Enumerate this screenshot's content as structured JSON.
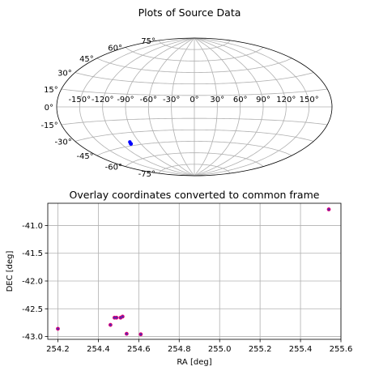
{
  "chart_data": [
    {
      "type": "scatter",
      "projection": "aitoff",
      "title": "Plots of Source Data",
      "xtick_labels": [
        "-150°",
        "-120°",
        "-90°",
        "-60°",
        "-30°",
        "0°",
        "30°",
        "60°",
        "90°",
        "120°",
        "150°"
      ],
      "ytick_labels": [
        "-75°",
        "-60°",
        "-45°",
        "-30°",
        "-15°",
        "0°",
        "15°",
        "30°",
        "45°",
        "60°",
        "75°"
      ],
      "grid": true,
      "point_color": "#0000ff",
      "series": [
        {
          "lon_deg": [
            -105.8,
            -105.52,
            -105.47,
            -105.46,
            -105.49,
            -105.41,
            -104.46
          ],
          "lat_deg": [
            -42.86,
            -42.66,
            -42.66,
            -42.65,
            -42.78,
            -42.95,
            -40.71
          ]
        }
      ]
    },
    {
      "type": "scatter",
      "title": "Overlay coordinates converted to common frame",
      "xlabel": "RA [deg]",
      "ylabel": "DEC [deg]",
      "xlim": [
        254.15,
        255.6
      ],
      "ylim": [
        -43.05,
        -40.6
      ],
      "xtick_labels": [
        "254.2",
        "254.4",
        "254.6",
        "254.8",
        "255.0",
        "255.2",
        "255.4",
        "255.6"
      ],
      "ytick_labels": [
        "-41.0",
        "-41.5",
        "-42.0",
        "-42.5",
        "-43.0"
      ],
      "grid": true,
      "series": [
        {
          "marker_color": "#e0007a",
          "x": [
            254.2,
            254.46,
            254.48,
            254.49,
            254.51,
            254.52,
            254.54,
            254.61,
            255.54
          ],
          "y": [
            -42.86,
            -42.79,
            -42.66,
            -42.66,
            -42.66,
            -42.64,
            -42.95,
            -42.96,
            -40.71
          ]
        },
        {
          "marker_color": "#4b2ab0",
          "x": [
            254.2,
            254.46,
            254.48,
            254.49,
            254.51,
            254.52,
            254.54,
            254.61,
            255.54
          ],
          "y": [
            -42.86,
            -42.79,
            -42.66,
            -42.66,
            -42.66,
            -42.64,
            -42.95,
            -42.96,
            -40.71
          ]
        }
      ]
    }
  ]
}
